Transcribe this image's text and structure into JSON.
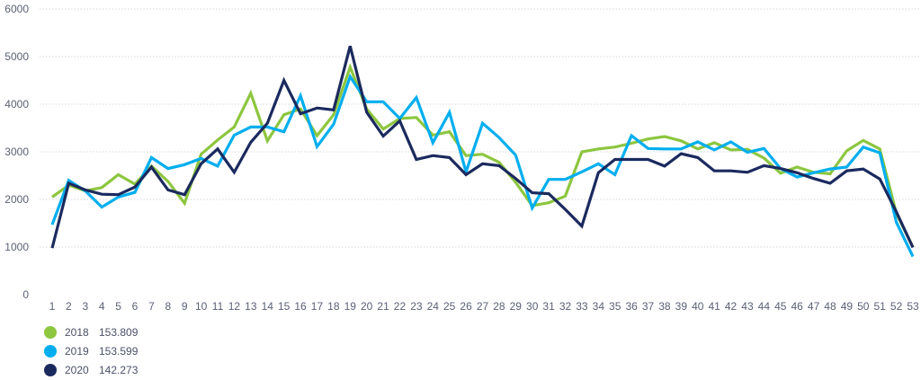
{
  "chart_data": {
    "type": "line",
    "title": "",
    "xlabel": "",
    "ylabel": "",
    "ylim": [
      0,
      6000
    ],
    "yticks": [
      0,
      1000,
      2000,
      3000,
      4000,
      5000,
      6000
    ],
    "grid": "horizontal",
    "legend_position": "bottom-left",
    "x": [
      1,
      2,
      3,
      4,
      5,
      6,
      7,
      8,
      9,
      10,
      11,
      12,
      13,
      14,
      15,
      16,
      17,
      18,
      19,
      20,
      21,
      22,
      23,
      24,
      25,
      26,
      27,
      28,
      29,
      30,
      31,
      32,
      33,
      34,
      35,
      36,
      37,
      38,
      39,
      40,
      41,
      42,
      43,
      44,
      45,
      46,
      47,
      48,
      49,
      50,
      51,
      52,
      53
    ],
    "series": [
      {
        "name": "2018",
        "total": "153.809",
        "color": "#8dc63f",
        "values": [
          2050,
          2300,
          2180,
          2250,
          2520,
          2320,
          2700,
          2380,
          1920,
          2950,
          3250,
          3520,
          4230,
          3230,
          3780,
          3900,
          3340,
          3780,
          4780,
          3900,
          3480,
          3700,
          3720,
          3350,
          3420,
          2920,
          2950,
          2780,
          2360,
          1870,
          1930,
          2070,
          3000,
          3060,
          3100,
          3180,
          3270,
          3320,
          3230,
          3060,
          3190,
          3040,
          3050,
          2870,
          2550,
          2680,
          2570,
          2540,
          3020,
          3240,
          3060,
          1710,
          1000
        ]
      },
      {
        "name": "2019",
        "total": "153.599",
        "color": "#00aeef",
        "values": [
          1470,
          2400,
          2180,
          1840,
          2050,
          2150,
          2880,
          2650,
          2730,
          2860,
          2700,
          3350,
          3520,
          3520,
          3420,
          4180,
          3110,
          3580,
          4580,
          4050,
          4050,
          3700,
          4140,
          3190,
          3830,
          2580,
          3600,
          3300,
          2930,
          1820,
          2420,
          2420,
          2580,
          2750,
          2520,
          3340,
          3070,
          3060,
          3060,
          3210,
          3040,
          3210,
          2990,
          3070,
          2650,
          2470,
          2560,
          2640,
          2680,
          3100,
          2980,
          1520,
          800
        ]
      },
      {
        "name": "2020",
        "total": "142.273",
        "color": "#1b2a5e",
        "values": [
          980,
          2340,
          2200,
          2110,
          2100,
          2260,
          2680,
          2200,
          2100,
          2750,
          3060,
          2570,
          3200,
          3600,
          4500,
          3800,
          3920,
          3880,
          5220,
          3830,
          3330,
          3650,
          2840,
          2920,
          2880,
          2520,
          2750,
          2710,
          2440,
          2140,
          2120,
          1790,
          1440,
          2560,
          2840,
          2840,
          2840,
          2700,
          2960,
          2880,
          2600,
          2600,
          2570,
          2710,
          2650,
          2560,
          2440,
          2340,
          2600,
          2640,
          2430,
          1740,
          990
        ]
      }
    ]
  }
}
